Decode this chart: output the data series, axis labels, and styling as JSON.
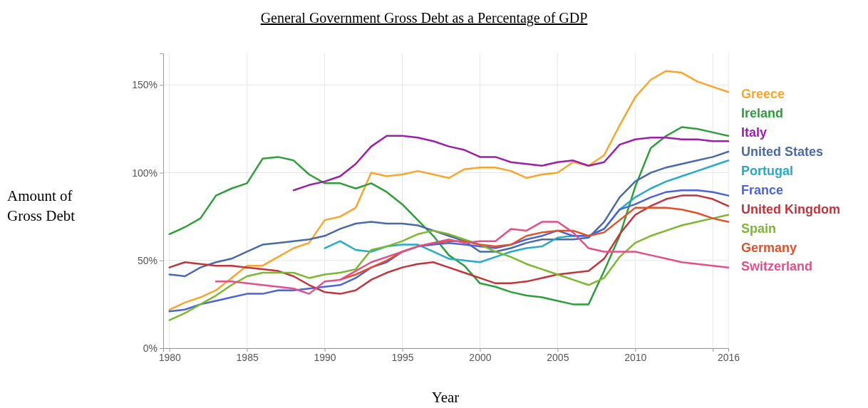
{
  "chart_data": {
    "type": "line",
    "title": "General Government Gross Debt as a Percentage of GDP",
    "xlabel": "Year",
    "ylabel": "Amount of\nGross Debt",
    "xlim": [
      1979.6,
      2016
    ],
    "xticks": [
      1980,
      1985,
      1990,
      1995,
      2000,
      2005,
      2010,
      {
        "value": 2015,
        "label": null
      },
      2016
    ],
    "ylim": [
      0,
      168
    ],
    "yticks": [
      {
        "value": 0,
        "label": "0%"
      },
      {
        "value": 50,
        "label": "50%"
      },
      {
        "value": 100,
        "label": "100%"
      },
      {
        "value": 150,
        "label": "150%"
      }
    ],
    "grid": true,
    "legend": "right",
    "line_style": "solid",
    "marker": "none",
    "x": [
      1980,
      1981,
      1982,
      1983,
      1984,
      1985,
      1986,
      1987,
      1988,
      1989,
      1990,
      1991,
      1992,
      1993,
      1994,
      1995,
      1996,
      1997,
      1998,
      1999,
      2000,
      2001,
      2002,
      2003,
      2004,
      2005,
      2006,
      2007,
      2008,
      2009,
      2010,
      2011,
      2012,
      2013,
      2014,
      2015,
      2016
    ],
    "series": [
      {
        "name": "Greece",
        "color": "#f7a52c",
        "values": [
          22,
          26,
          29,
          33,
          40,
          47,
          47,
          52,
          57,
          60,
          73,
          75,
          80,
          100,
          98,
          99,
          101,
          99,
          97,
          102,
          103,
          103,
          101,
          97,
          99,
          100,
          106,
          104,
          110,
          127,
          143,
          153,
          158,
          157,
          152,
          149,
          146
        ]
      },
      {
        "name": "Ireland",
        "color": "#2f9e3a",
        "values": [
          65,
          69,
          74,
          87,
          91,
          94,
          108,
          109,
          107,
          99,
          94,
          94,
          91,
          94,
          89,
          82,
          73,
          64,
          53,
          47,
          37,
          35,
          32,
          30,
          29,
          27,
          25,
          25,
          44,
          64,
          92,
          114,
          121,
          126,
          125,
          123,
          121
        ]
      },
      {
        "name": "Italy",
        "color": "#9b1fa8",
        "values": [
          null,
          null,
          null,
          null,
          null,
          null,
          null,
          null,
          90,
          93,
          95,
          98,
          105,
          115,
          121,
          121,
          120,
          118,
          115,
          113,
          109,
          109,
          106,
          105,
          104,
          106,
          107,
          104,
          106,
          116,
          119,
          120,
          120,
          119,
          119,
          118,
          118
        ]
      },
      {
        "name": "United States",
        "color": "#4a6aa5",
        "values": [
          42,
          41,
          46,
          49,
          51,
          55,
          59,
          60,
          61,
          62,
          64,
          68,
          71,
          72,
          71,
          71,
          70,
          67,
          64,
          61,
          55,
          55,
          57,
          60,
          62,
          62,
          62,
          63,
          72,
          86,
          95,
          100,
          103,
          105,
          107,
          109,
          112
        ]
      },
      {
        "name": "Portugal",
        "color": "#27a9c9",
        "values": [
          null,
          null,
          null,
          null,
          null,
          null,
          null,
          null,
          null,
          null,
          57,
          61,
          56,
          55,
          58,
          59,
          59,
          55,
          51,
          50,
          49,
          52,
          55,
          57,
          58,
          63,
          64,
          64,
          68,
          79,
          86,
          91,
          95,
          98,
          101,
          104,
          107
        ]
      },
      {
        "name": "France",
        "color": "#4a63d8",
        "values": [
          21,
          22,
          25,
          27,
          29,
          31,
          31,
          33,
          33,
          34,
          35,
          36,
          40,
          46,
          49,
          55,
          58,
          59,
          60,
          59,
          58,
          57,
          59,
          62,
          64,
          67,
          64,
          64,
          68,
          79,
          82,
          86,
          89,
          90,
          90,
          89,
          87
        ]
      },
      {
        "name": "United Kingdom",
        "color": "#c0343c",
        "values": [
          46,
          49,
          48,
          47,
          47,
          46,
          45,
          44,
          41,
          36,
          32,
          31,
          33,
          39,
          43,
          46,
          48,
          49,
          46,
          43,
          40,
          37,
          37,
          38,
          40,
          42,
          43,
          44,
          51,
          65,
          76,
          81,
          85,
          87,
          87,
          85,
          81
        ]
      },
      {
        "name": "Spain",
        "color": "#7cb82f",
        "values": [
          16,
          20,
          25,
          30,
          36,
          41,
          43,
          43,
          43,
          40,
          42,
          43,
          45,
          56,
          58,
          61,
          65,
          67,
          65,
          62,
          59,
          55,
          52,
          48,
          45,
          42,
          39,
          36,
          40,
          52,
          60,
          64,
          67,
          70,
          72,
          74,
          76
        ]
      },
      {
        "name": "Germany",
        "color": "#e0502a",
        "values": [
          null,
          null,
          null,
          null,
          null,
          null,
          null,
          null,
          null,
          null,
          null,
          39,
          42,
          46,
          50,
          55,
          58,
          60,
          61,
          61,
          59,
          58,
          59,
          64,
          66,
          67,
          67,
          64,
          66,
          73,
          80,
          80,
          80,
          79,
          77,
          74,
          72
        ]
      },
      {
        "name": "Switzerland",
        "color": "#e0508a",
        "values": [
          null,
          null,
          null,
          38,
          38,
          37,
          36,
          35,
          34,
          31,
          38,
          39,
          44,
          49,
          52,
          55,
          58,
          60,
          62,
          60,
          61,
          61,
          68,
          67,
          72,
          72,
          66,
          57,
          55,
          55,
          55,
          53,
          51,
          49,
          48,
          47,
          46
        ]
      }
    ]
  }
}
